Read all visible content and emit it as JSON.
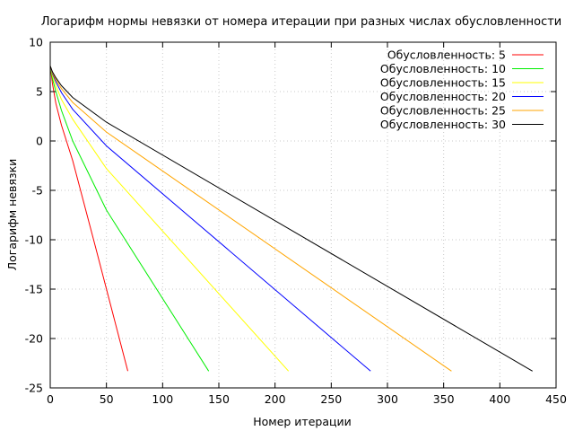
{
  "chart_data": {
    "type": "line",
    "title": "Логарифм нормы невязки от номера итерации при разных числах обусловленности",
    "xlabel": "Номер итерации",
    "ylabel": "Логарифм невязки",
    "xlim": [
      0,
      450
    ],
    "ylim": [
      -25,
      10
    ],
    "xticks": [
      0,
      50,
      100,
      150,
      200,
      250,
      300,
      350,
      400,
      450
    ],
    "yticks": [
      -25,
      -20,
      -15,
      -10,
      -5,
      0,
      5,
      10
    ],
    "grid": true,
    "legend_position": "top-right",
    "series": [
      {
        "name": "Обусловленность: 5",
        "color": "#ff0000",
        "x": [
          0,
          2,
          5,
          10,
          20,
          40,
          69
        ],
        "y": [
          7.6,
          5.8,
          3.8,
          1.6,
          -2.0,
          -10.6,
          -23.3
        ]
      },
      {
        "name": "Обусловленность: 10",
        "color": "#00ee00",
        "x": [
          0,
          2,
          5,
          10,
          20,
          50,
          141
        ],
        "y": [
          7.6,
          6.3,
          5.0,
          3.1,
          0.0,
          -7.0,
          -23.3
        ]
      },
      {
        "name": "Обусловленность: 15",
        "color": "#ffff00",
        "x": [
          0,
          2,
          5,
          10,
          20,
          50,
          212
        ],
        "y": [
          7.6,
          6.6,
          5.6,
          4.2,
          2.2,
          -2.8,
          -23.3
        ]
      },
      {
        "name": "Обусловленность: 20",
        "color": "#0000ff",
        "x": [
          0,
          2,
          5,
          10,
          20,
          50,
          285
        ],
        "y": [
          7.6,
          6.8,
          6.0,
          4.9,
          3.2,
          -0.5,
          -23.3
        ]
      },
      {
        "name": "Обусловленность: 25",
        "color": "#ffa500",
        "x": [
          0,
          2,
          5,
          10,
          20,
          50,
          357
        ],
        "y": [
          7.6,
          6.9,
          6.2,
          5.3,
          3.9,
          0.9,
          -23.3
        ]
      },
      {
        "name": "Обусловленность: 30",
        "color": "#000000",
        "x": [
          0,
          2,
          5,
          10,
          20,
          50,
          429
        ],
        "y": [
          7.6,
          7.0,
          6.4,
          5.6,
          4.4,
          1.9,
          -23.3
        ]
      }
    ]
  }
}
